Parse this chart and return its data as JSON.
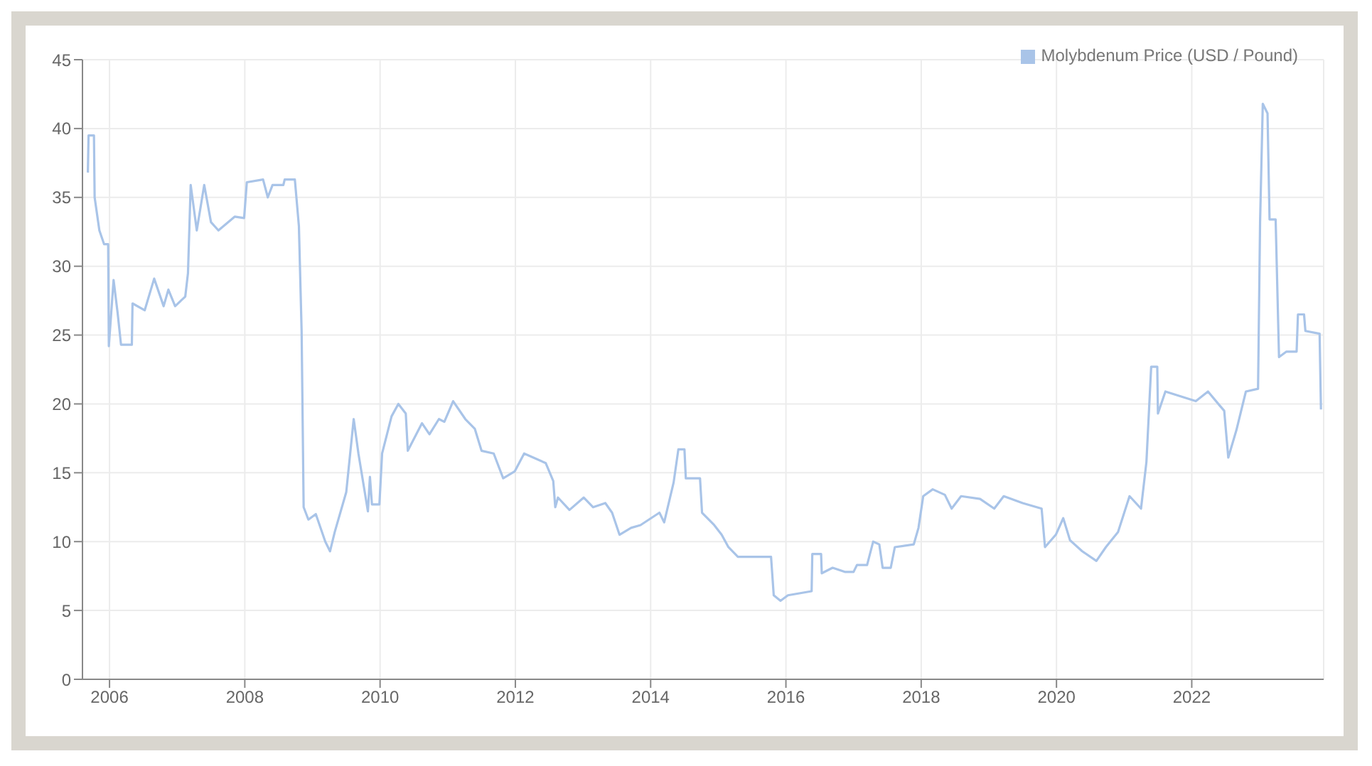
{
  "chart_data": {
    "type": "line",
    "legend": "top right",
    "grid": true,
    "marker": "none",
    "line_style": "solid",
    "xlim": [
      2005.6,
      2023.95
    ],
    "xticks": [
      2006,
      2008,
      2010,
      2012,
      2014,
      2016,
      2018,
      2020,
      2022
    ],
    "ylim": [
      0,
      45
    ],
    "yticks": [
      0,
      5,
      10,
      15,
      20,
      25,
      30,
      35,
      40,
      45
    ],
    "x": [
      2005.68,
      2005.69,
      2005.77,
      2005.78,
      2005.85,
      2005.92,
      2005.98,
      2005.99,
      2006.06,
      2006.12,
      2006.17,
      2006.33,
      2006.34,
      2006.52,
      2006.66,
      2006.8,
      2006.87,
      2006.97,
      2007.12,
      2007.16,
      2007.2,
      2007.29,
      2007.4,
      2007.5,
      2007.61,
      2007.85,
      2007.99,
      2008.03,
      2008.27,
      2008.34,
      2008.41,
      2008.57,
      2008.59,
      2008.74,
      2008.8,
      2008.84,
      2008.87,
      2008.94,
      2009.05,
      2009.19,
      2009.26,
      2009.33,
      2009.5,
      2009.61,
      2009.68,
      2009.82,
      2009.85,
      2009.88,
      2009.99,
      2010.03,
      2010.17,
      2010.27,
      2010.38,
      2010.41,
      2010.62,
      2010.73,
      2010.87,
      2010.95,
      2011.08,
      2011.26,
      2011.4,
      2011.5,
      2011.68,
      2011.82,
      2011.99,
      2012.13,
      2012.45,
      2012.56,
      2012.59,
      2012.63,
      2012.8,
      2013.01,
      2013.15,
      2013.33,
      2013.43,
      2013.54,
      2013.71,
      2013.85,
      2014.13,
      2014.2,
      2014.34,
      2014.41,
      2014.5,
      2014.52,
      2014.73,
      2014.76,
      2014.94,
      2015.05,
      2015.15,
      2015.29,
      2015.78,
      2015.82,
      2015.92,
      2016.03,
      2016.38,
      2016.39,
      2016.52,
      2016.53,
      2016.69,
      2016.87,
      2017.0,
      2017.05,
      2017.2,
      2017.29,
      2017.38,
      2017.43,
      2017.55,
      2017.61,
      2017.89,
      2017.96,
      2018.03,
      2018.17,
      2018.35,
      2018.45,
      2018.59,
      2018.87,
      2019.08,
      2019.22,
      2019.5,
      2019.78,
      2019.83,
      2019.99,
      2020.1,
      2020.2,
      2020.38,
      2020.59,
      2020.73,
      2020.91,
      2021.08,
      2021.25,
      2021.33,
      2021.4,
      2021.49,
      2021.5,
      2021.61,
      2022.06,
      2022.24,
      2022.41,
      2022.48,
      2022.54,
      2022.66,
      2022.8,
      2022.98,
      2023.01,
      2023.05,
      2023.12,
      2023.15,
      2023.24,
      2023.29,
      2023.4,
      2023.55,
      2023.57,
      2023.66,
      2023.68,
      2023.89,
      2023.91
    ],
    "series": [
      {
        "name": "Molybdenum Price (USD / Pound)",
        "color": "#a9c4e8",
        "values": [
          36.8,
          39.5,
          39.5,
          35.0,
          32.6,
          31.6,
          31.6,
          24.2,
          29.0,
          26.6,
          24.3,
          24.3,
          27.3,
          26.8,
          29.1,
          27.1,
          28.3,
          27.1,
          27.8,
          29.5,
          35.9,
          32.6,
          35.9,
          33.2,
          32.6,
          33.6,
          33.5,
          36.1,
          36.3,
          35.0,
          35.9,
          35.9,
          36.3,
          36.3,
          32.9,
          25.3,
          12.5,
          11.6,
          12.0,
          10.0,
          9.3,
          10.7,
          13.6,
          18.9,
          16.4,
          12.2,
          14.7,
          12.7,
          12.7,
          16.4,
          19.1,
          20.0,
          19.3,
          16.6,
          18.6,
          17.8,
          18.9,
          18.7,
          20.2,
          18.9,
          18.2,
          16.6,
          16.4,
          14.6,
          15.1,
          16.4,
          15.7,
          14.4,
          12.5,
          13.2,
          12.3,
          13.2,
          12.5,
          12.8,
          12.1,
          10.5,
          11.0,
          11.2,
          12.1,
          11.4,
          14.3,
          16.7,
          16.7,
          14.6,
          14.6,
          12.1,
          11.2,
          10.5,
          9.6,
          8.9,
          8.9,
          6.1,
          5.7,
          6.1,
          6.4,
          9.1,
          9.1,
          7.7,
          8.1,
          7.8,
          7.8,
          8.3,
          8.3,
          10.0,
          9.8,
          8.1,
          8.1,
          9.6,
          9.8,
          11.0,
          13.3,
          13.8,
          13.4,
          12.4,
          13.3,
          13.1,
          12.4,
          13.3,
          12.8,
          12.4,
          9.6,
          10.5,
          11.7,
          10.1,
          9.3,
          8.6,
          9.6,
          10.7,
          13.3,
          12.4,
          15.8,
          22.7,
          22.7,
          19.3,
          20.9,
          20.2,
          20.9,
          19.9,
          19.5,
          16.1,
          18.1,
          20.9,
          21.1,
          33.2,
          41.8,
          41.1,
          33.4,
          33.4,
          23.4,
          23.8,
          23.8,
          26.5,
          26.5,
          25.3,
          25.1,
          19.6
        ]
      }
    ]
  }
}
